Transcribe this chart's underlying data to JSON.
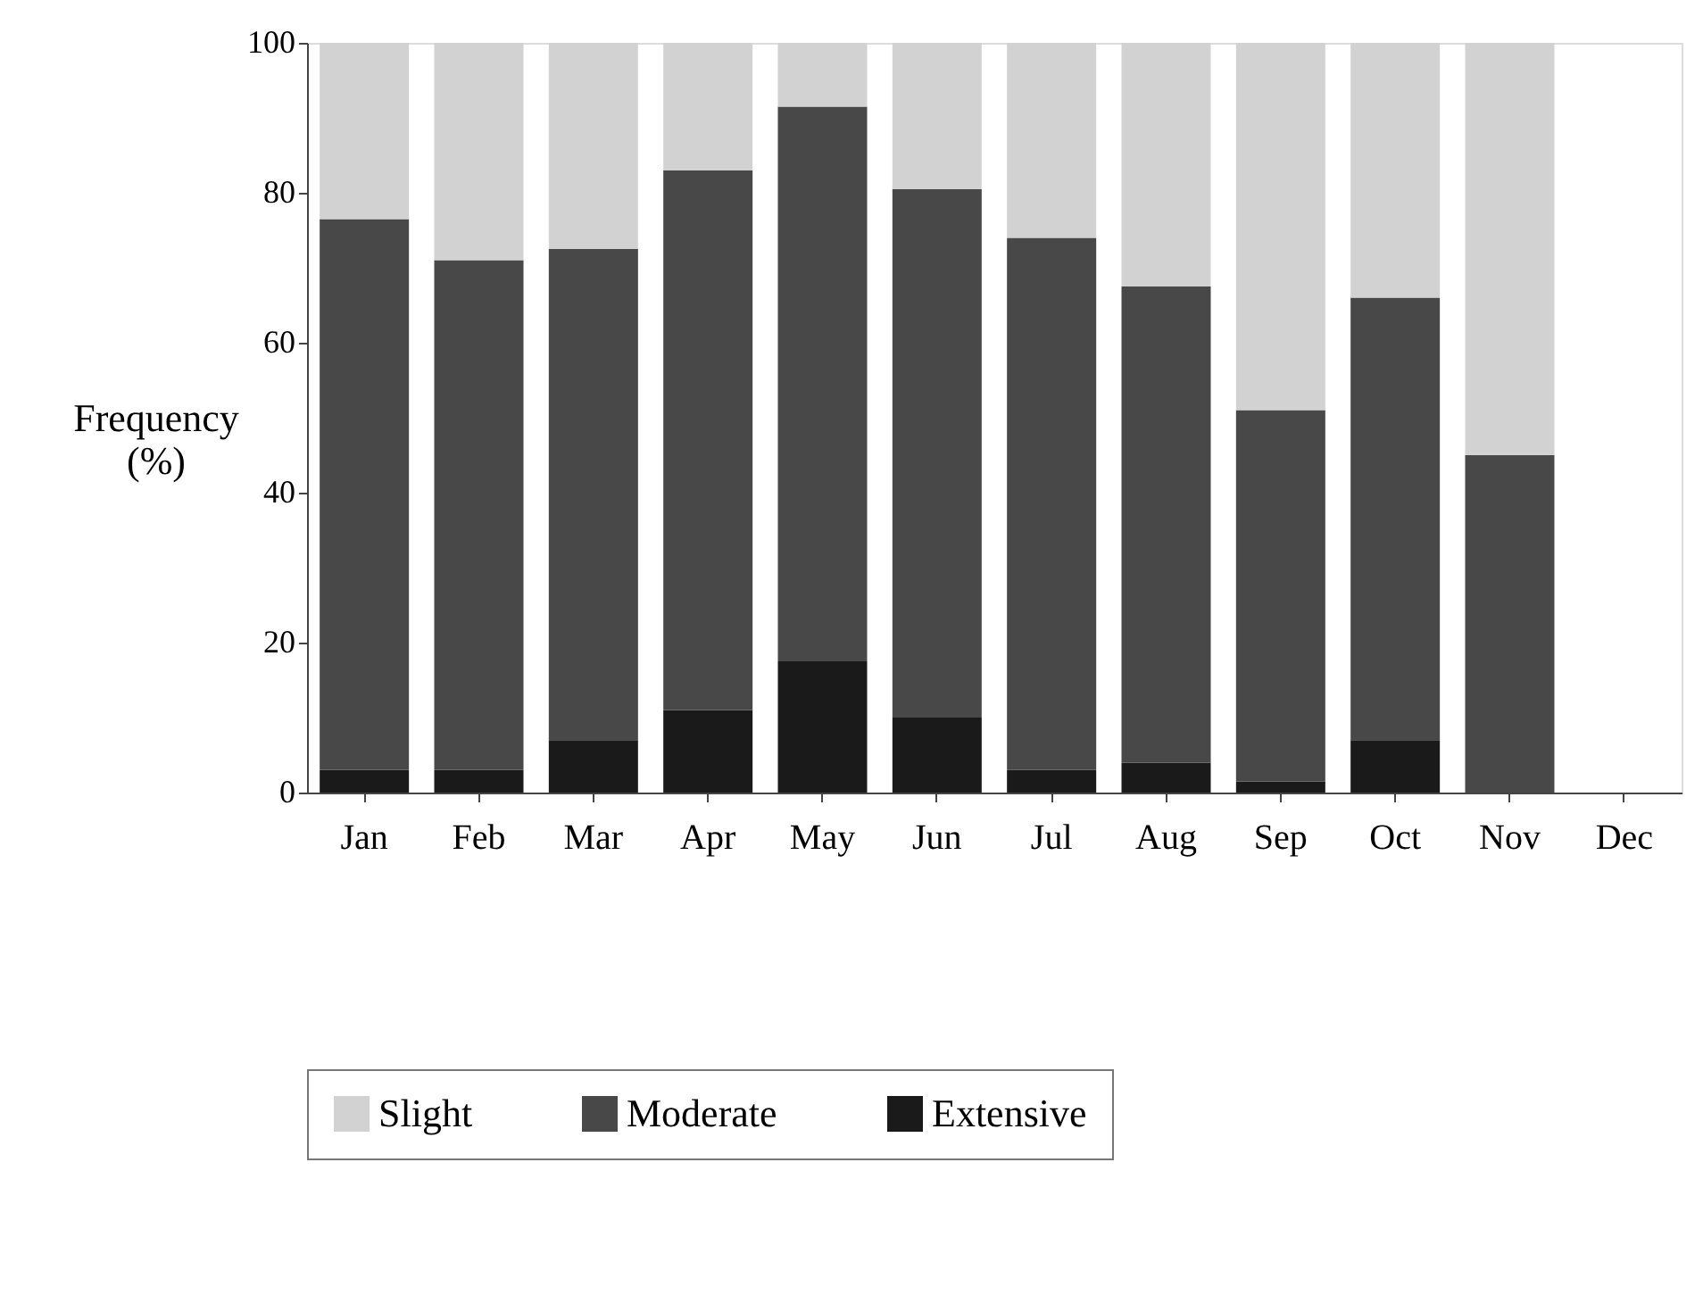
{
  "chart_data": {
    "type": "bar",
    "stacked": true,
    "ylabel": "Frequency\n(%)",
    "categories": [
      "Jan",
      "Feb",
      "Mar",
      "Apr",
      "May",
      "Jun",
      "Jul",
      "Aug",
      "Sep",
      "Oct",
      "Nov",
      "Dec"
    ],
    "series": [
      {
        "name": "Extensive",
        "color": "#1a1a1a",
        "values": [
          3,
          3,
          7,
          11,
          17.5,
          10,
          3,
          4,
          1.5,
          7,
          0,
          null
        ]
      },
      {
        "name": "Moderate",
        "color": "#484848",
        "values": [
          73.5,
          68,
          65.5,
          72,
          74,
          70.5,
          71,
          63.5,
          49.5,
          59,
          45,
          null
        ]
      },
      {
        "name": "Slight",
        "color": "#d2d2d2",
        "values": [
          23.5,
          29,
          27.5,
          17,
          8.5,
          19.5,
          26,
          32.5,
          49,
          34,
          55,
          null
        ]
      }
    ],
    "ylim": [
      0,
      100
    ],
    "yticks": [
      0,
      20,
      40,
      60,
      80,
      100
    ],
    "grid": false,
    "legend": "bottom"
  }
}
